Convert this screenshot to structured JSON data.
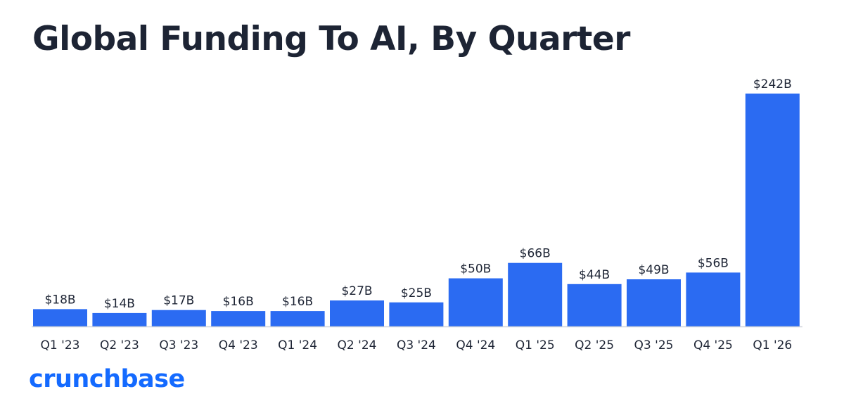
{
  "brand": {
    "logo_text": "crunchbase",
    "color": "#146aff"
  },
  "colors": {
    "bar": "#2b6bf2",
    "text": "#1d2434",
    "axis": "#cfd3da"
  },
  "chart_data": {
    "type": "bar",
    "title": "Global Funding To AI, By Quarter",
    "xlabel": "",
    "ylabel": "",
    "grid": false,
    "ylim": [
      0,
      242
    ],
    "categories": [
      "Q1 '23",
      "Q2 '23",
      "Q3 '23",
      "Q4 '23",
      "Q1 '24",
      "Q2 '24",
      "Q3 '24",
      "Q4 '24",
      "Q1 '25",
      "Q2 '25",
      "Q3 '25",
      "Q4 '25",
      "Q1 '26"
    ],
    "values": [
      18,
      14,
      17,
      16,
      16,
      27,
      25,
      50,
      66,
      44,
      49,
      56,
      242
    ],
    "value_labels": [
      "$18B",
      "$14B",
      "$17B",
      "$16B",
      "$16B",
      "$27B",
      "$25B",
      "$50B",
      "$66B",
      "$44B",
      "$49B",
      "$56B",
      "$242B"
    ]
  }
}
